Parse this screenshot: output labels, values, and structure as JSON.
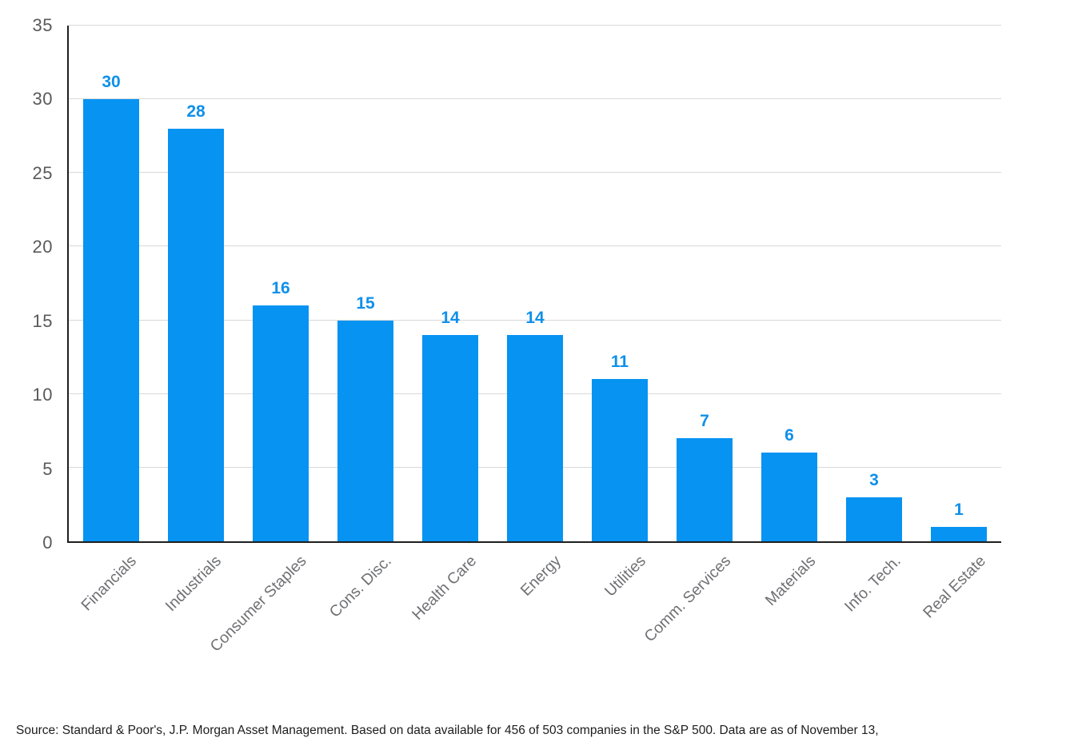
{
  "chart_data": {
    "type": "bar",
    "categories": [
      "Financials",
      "Industrials",
      "Consumer Staples",
      "Cons. Disc.",
      "Health Care",
      "Energy",
      "Utilities",
      "Comm. Services",
      "Materials",
      "Info. Tech.",
      "Real Estate"
    ],
    "values": [
      30,
      28,
      16,
      15,
      14,
      14,
      11,
      7,
      6,
      3,
      1
    ],
    "title": "",
    "xlabel": "",
    "ylabel": "",
    "ylim": [
      0,
      35
    ],
    "yticks": [
      0,
      5,
      10,
      15,
      20,
      25,
      30,
      35
    ],
    "grid": true,
    "legend": "none",
    "bar_color": "#0693f2",
    "value_label_color": "#0f90ea",
    "axis_line_color": "#1f1f1f",
    "gridline_color": "#d9d9d9",
    "ytick_label_color": "#59595b",
    "category_label_color": "#6f7073"
  },
  "footer": {
    "source_text": "Source: Standard & Poor's, J.P. Morgan Asset Management. Based on data available for 456 of 503 companies in the S&P 500. Data are as of November 13,"
  }
}
